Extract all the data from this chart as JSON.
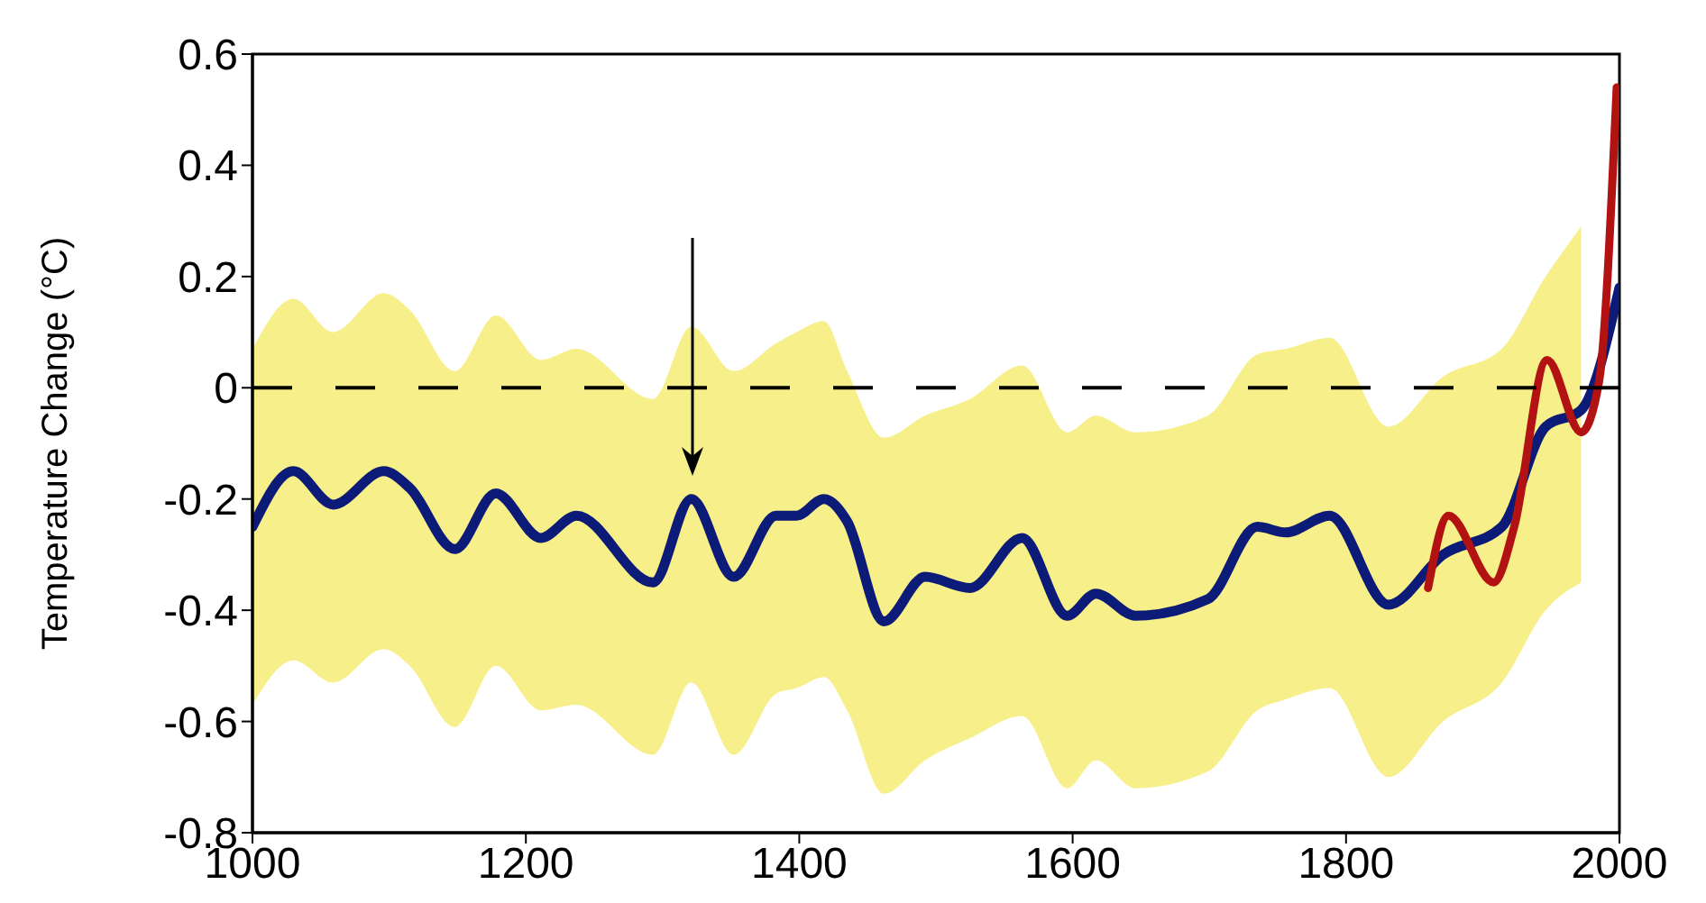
{
  "chart_data": {
    "type": "line",
    "ylabel": "Temperature Change (°C)",
    "xlim": [
      1000,
      2000
    ],
    "xticks": [
      1000,
      1200,
      1400,
      1600,
      1800,
      2000
    ],
    "ylim": [
      -0.8,
      0.6
    ],
    "yticks": [
      -0.8,
      -0.6,
      -0.4,
      -0.2,
      0,
      0.2,
      0.4,
      0.6
    ],
    "grid": false,
    "legend": false,
    "marker": "none",
    "series": [
      {
        "color": "#0c1a78",
        "x": [
          1000,
          1030,
          1059,
          1096,
          1115,
          1148,
          1178,
          1211,
          1237,
          1293,
          1321,
          1352,
          1383,
          1398,
          1418,
          1435,
          1462,
          1492,
          1525,
          1563,
          1596,
          1617,
          1646,
          1699,
          1735,
          1756,
          1788,
          1831,
          1871,
          1914,
          1946,
          1972,
          2000
        ],
        "values": [
          -0.25,
          -0.15,
          -0.21,
          -0.15,
          -0.18,
          -0.29,
          -0.19,
          -0.27,
          -0.23,
          -0.35,
          -0.2,
          -0.34,
          -0.23,
          -0.23,
          -0.2,
          -0.24,
          -0.42,
          -0.34,
          -0.36,
          -0.27,
          -0.41,
          -0.37,
          -0.41,
          -0.38,
          -0.25,
          -0.26,
          -0.23,
          -0.39,
          -0.3,
          -0.25,
          -0.07,
          -0.04,
          0.18
        ],
        "lower": [
          -0.57,
          -0.49,
          -0.53,
          -0.47,
          -0.5,
          -0.61,
          -0.5,
          -0.58,
          -0.57,
          -0.66,
          -0.53,
          -0.66,
          -0.55,
          -0.54,
          -0.52,
          -0.58,
          -0.73,
          -0.67,
          -0.63,
          -0.59,
          -0.72,
          -0.67,
          -0.72,
          -0.69,
          -0.58,
          -0.56,
          -0.54,
          -0.7,
          -0.6,
          -0.53,
          -0.4,
          -0.35,
          null
        ],
        "upper": [
          0.07,
          0.16,
          0.1,
          0.17,
          0.14,
          0.03,
          0.13,
          0.05,
          0.07,
          -0.02,
          0.11,
          0.03,
          0.08,
          0.1,
          0.12,
          0.03,
          -0.09,
          -0.05,
          -0.02,
          0.04,
          -0.08,
          -0.05,
          -0.08,
          -0.05,
          0.06,
          0.07,
          0.09,
          -0.07,
          0.02,
          0.07,
          0.2,
          0.29,
          null
        ]
      },
      {
        "color": "#b31212",
        "x": [
          1860,
          1875,
          1908,
          1923,
          1947,
          1972,
          1985,
          1998
        ],
        "values": [
          -0.36,
          -0.23,
          -0.35,
          -0.25,
          0.05,
          -0.08,
          0.01,
          0.54
        ]
      }
    ],
    "ref_lines": [
      {
        "axis": "y",
        "value": 0,
        "color": "#000000",
        "line_style": "dashed"
      }
    ]
  }
}
